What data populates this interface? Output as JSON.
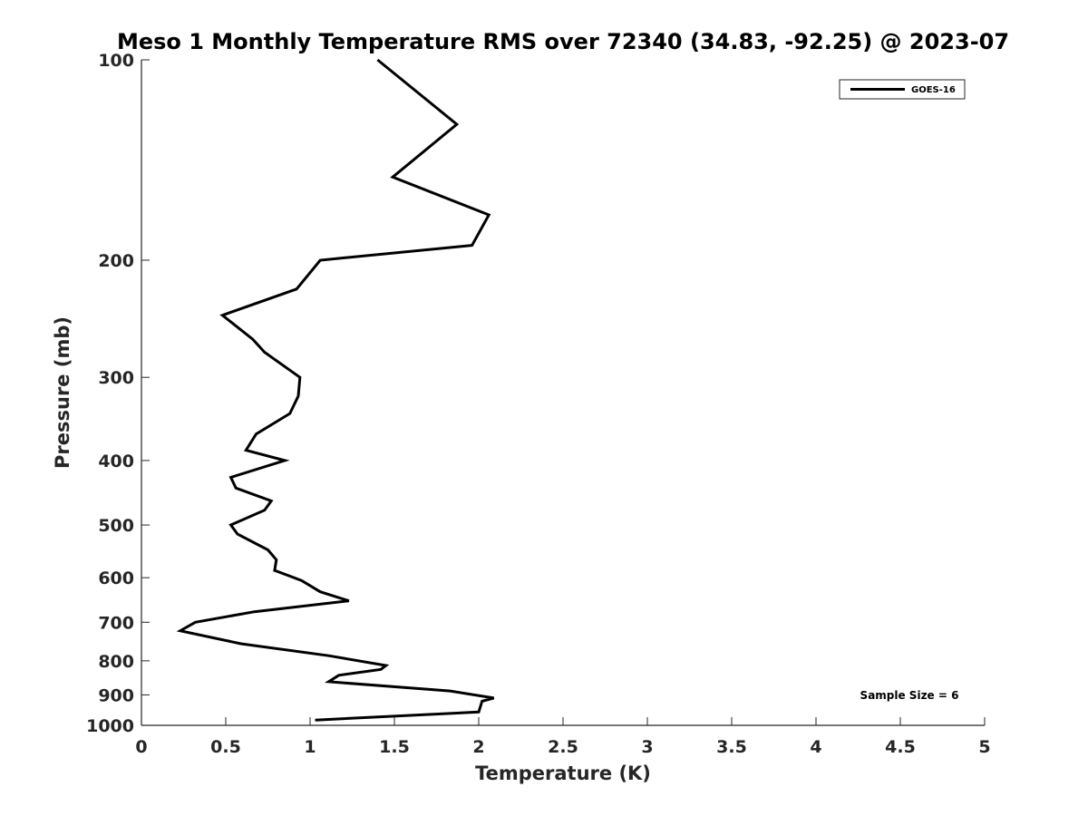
{
  "chart_data": {
    "type": "line",
    "title": "Meso 1 Monthly Temperature RMS over 72340 (34.83, -92.25) @ 2023-07",
    "xlabel": "Temperature (K)",
    "ylabel": "Pressure (mb)",
    "xlim": [
      0,
      5
    ],
    "ylim": [
      1000,
      100
    ],
    "y_scale": "log",
    "y_reversed": true,
    "grid": false,
    "x_ticks": [
      0,
      0.5,
      1,
      1.5,
      2,
      2.5,
      3,
      3.5,
      4,
      4.5,
      5
    ],
    "x_tick_labels": [
      "0",
      "0.5",
      "1",
      "1.5",
      "2",
      "2.5",
      "3",
      "3.5",
      "4",
      "4.5",
      "5"
    ],
    "y_ticks": [
      100,
      200,
      300,
      400,
      500,
      600,
      700,
      800,
      900,
      1000
    ],
    "y_tick_labels": [
      "100",
      "200",
      "300",
      "400",
      "500",
      "600",
      "700",
      "800",
      "900",
      "1000"
    ],
    "legend_placement": "top-right",
    "series": [
      {
        "name": "GOES-16",
        "color": "#000000",
        "x": [
          1.4,
          1.87,
          1.49,
          2.06,
          1.96,
          1.06,
          0.92,
          0.48,
          0.66,
          0.73,
          0.94,
          0.93,
          0.88,
          0.68,
          0.62,
          0.85,
          0.53,
          0.56,
          0.77,
          0.73,
          0.53,
          0.57,
          0.75,
          0.8,
          0.79,
          0.95,
          1.06,
          1.23,
          0.67,
          0.32,
          0.23,
          0.59,
          1.11,
          1.45,
          1.42,
          1.17,
          1.11,
          1.83,
          2.09,
          2.02,
          2.0,
          1.03
        ],
        "y": [
          100,
          125,
          150,
          171,
          190,
          200,
          221,
          242,
          263,
          275,
          300,
          320,
          340,
          365,
          386,
          400,
          424,
          440,
          460,
          475,
          500,
          516,
          545,
          564,
          585,
          606,
          630,
          650,
          675,
          700,
          721,
          754,
          786,
          813,
          824,
          841,
          860,
          888,
          910,
          920,
          955,
          982
        ]
      }
    ],
    "annotation": "Sample Size = 6"
  }
}
